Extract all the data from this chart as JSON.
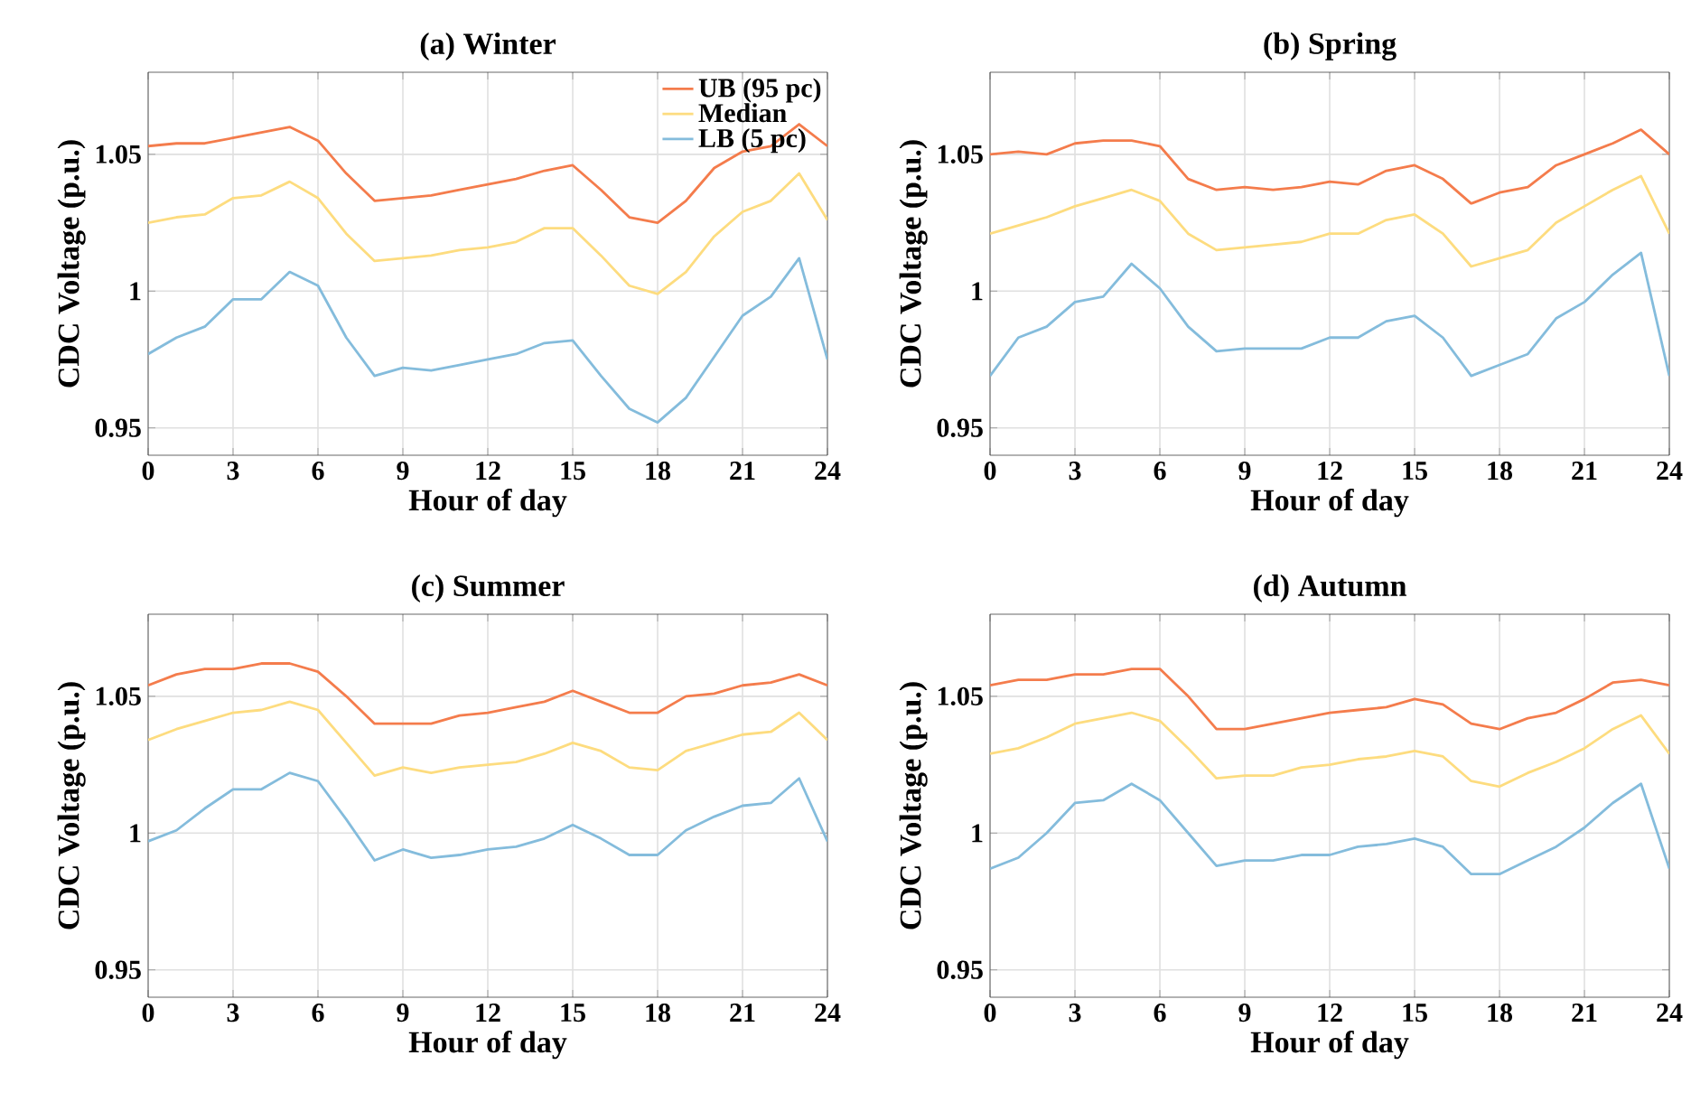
{
  "chart_data": [
    {
      "type": "line",
      "title": "(a) Winter",
      "xlabel": "Hour of day",
      "ylabel": "CDC Voltage (p.u.)",
      "x": [
        0,
        1,
        2,
        3,
        4,
        5,
        6,
        7,
        8,
        9,
        10,
        11,
        12,
        13,
        14,
        15,
        16,
        17,
        18,
        19,
        20,
        21,
        22,
        23,
        24
      ],
      "xlim": [
        0,
        24
      ],
      "xticks": [
        0,
        3,
        6,
        9,
        12,
        15,
        18,
        21,
        24
      ],
      "ylim": [
        0.94,
        1.08
      ],
      "yticks": [
        0.95,
        1,
        1.05
      ],
      "grid": true,
      "legend": "top right",
      "series": [
        {
          "name": "UB (95 pc)",
          "color": "#f47c4c",
          "values": [
            1.053,
            1.054,
            1.054,
            1.056,
            1.058,
            1.06,
            1.055,
            1.043,
            1.033,
            1.034,
            1.035,
            1.037,
            1.039,
            1.041,
            1.044,
            1.046,
            1.037,
            1.027,
            1.025,
            1.033,
            1.045,
            1.051,
            1.053,
            1.061,
            1.053
          ]
        },
        {
          "name": "Median",
          "color": "#fddc7f",
          "values": [
            1.025,
            1.027,
            1.028,
            1.034,
            1.035,
            1.04,
            1.034,
            1.021,
            1.011,
            1.012,
            1.013,
            1.015,
            1.016,
            1.018,
            1.023,
            1.023,
            1.013,
            1.002,
            0.999,
            1.007,
            1.02,
            1.029,
            1.033,
            1.043,
            1.026
          ]
        },
        {
          "name": "LB (5 pc)",
          "color": "#84bcdc",
          "values": [
            0.977,
            0.983,
            0.987,
            0.997,
            0.997,
            1.007,
            1.002,
            0.983,
            0.969,
            0.972,
            0.971,
            0.973,
            0.975,
            0.977,
            0.981,
            0.982,
            0.969,
            0.957,
            0.952,
            0.961,
            0.976,
            0.991,
            0.998,
            1.012,
            0.975
          ]
        }
      ]
    },
    {
      "type": "line",
      "title": "(b) Spring",
      "xlabel": "Hour of day",
      "ylabel": "CDC Voltage (p.u.)",
      "x": [
        0,
        1,
        2,
        3,
        4,
        5,
        6,
        7,
        8,
        9,
        10,
        11,
        12,
        13,
        14,
        15,
        16,
        17,
        18,
        19,
        20,
        21,
        22,
        23,
        24
      ],
      "xlim": [
        0,
        24
      ],
      "xticks": [
        0,
        3,
        6,
        9,
        12,
        15,
        18,
        21,
        24
      ],
      "ylim": [
        0.94,
        1.08
      ],
      "yticks": [
        0.95,
        1,
        1.05
      ],
      "grid": true,
      "series": [
        {
          "color": "#f47c4c",
          "values": [
            1.05,
            1.051,
            1.05,
            1.054,
            1.055,
            1.055,
            1.053,
            1.041,
            1.037,
            1.038,
            1.037,
            1.038,
            1.04,
            1.039,
            1.044,
            1.046,
            1.041,
            1.032,
            1.036,
            1.038,
            1.046,
            1.05,
            1.054,
            1.059,
            1.05
          ]
        },
        {
          "color": "#fddc7f",
          "values": [
            1.021,
            1.024,
            1.027,
            1.031,
            1.034,
            1.037,
            1.033,
            1.021,
            1.015,
            1.016,
            1.017,
            1.018,
            1.021,
            1.021,
            1.026,
            1.028,
            1.021,
            1.009,
            1.012,
            1.015,
            1.025,
            1.031,
            1.037,
            1.042,
            1.021
          ]
        },
        {
          "color": "#84bcdc",
          "values": [
            0.969,
            0.983,
            0.987,
            0.996,
            0.998,
            1.01,
            1.001,
            0.987,
            0.978,
            0.979,
            0.979,
            0.979,
            0.983,
            0.983,
            0.989,
            0.991,
            0.983,
            0.969,
            0.973,
            0.977,
            0.99,
            0.996,
            1.006,
            1.014,
            0.969
          ]
        }
      ]
    },
    {
      "type": "line",
      "title": "(c) Summer",
      "xlabel": "Hour of day",
      "ylabel": "CDC Voltage (p.u.)",
      "x": [
        0,
        1,
        2,
        3,
        4,
        5,
        6,
        7,
        8,
        9,
        10,
        11,
        12,
        13,
        14,
        15,
        16,
        17,
        18,
        19,
        20,
        21,
        22,
        23,
        24
      ],
      "xlim": [
        0,
        24
      ],
      "xticks": [
        0,
        3,
        6,
        9,
        12,
        15,
        18,
        21,
        24
      ],
      "ylim": [
        0.94,
        1.08
      ],
      "yticks": [
        0.95,
        1,
        1.05
      ],
      "grid": true,
      "series": [
        {
          "color": "#f47c4c",
          "values": [
            1.054,
            1.058,
            1.06,
            1.06,
            1.062,
            1.062,
            1.059,
            1.05,
            1.04,
            1.04,
            1.04,
            1.043,
            1.044,
            1.046,
            1.048,
            1.052,
            1.048,
            1.044,
            1.044,
            1.05,
            1.051,
            1.054,
            1.055,
            1.058,
            1.054
          ]
        },
        {
          "color": "#fddc7f",
          "values": [
            1.034,
            1.038,
            1.041,
            1.044,
            1.045,
            1.048,
            1.045,
            1.033,
            1.021,
            1.024,
            1.022,
            1.024,
            1.025,
            1.026,
            1.029,
            1.033,
            1.03,
            1.024,
            1.023,
            1.03,
            1.033,
            1.036,
            1.037,
            1.044,
            1.034
          ]
        },
        {
          "color": "#84bcdc",
          "values": [
            0.997,
            1.001,
            1.009,
            1.016,
            1.016,
            1.022,
            1.019,
            1.005,
            0.99,
            0.994,
            0.991,
            0.992,
            0.994,
            0.995,
            0.998,
            1.003,
            0.998,
            0.992,
            0.992,
            1.001,
            1.006,
            1.01,
            1.011,
            1.02,
            0.997
          ]
        }
      ]
    },
    {
      "type": "line",
      "title": "(d) Autumn",
      "xlabel": "Hour of day",
      "ylabel": "CDC Voltage (p.u.)",
      "x": [
        0,
        1,
        2,
        3,
        4,
        5,
        6,
        7,
        8,
        9,
        10,
        11,
        12,
        13,
        14,
        15,
        16,
        17,
        18,
        19,
        20,
        21,
        22,
        23,
        24
      ],
      "xlim": [
        0,
        24
      ],
      "xticks": [
        0,
        3,
        6,
        9,
        12,
        15,
        18,
        21,
        24
      ],
      "ylim": [
        0.94,
        1.08
      ],
      "yticks": [
        0.95,
        1,
        1.05
      ],
      "grid": true,
      "series": [
        {
          "color": "#f47c4c",
          "values": [
            1.054,
            1.056,
            1.056,
            1.058,
            1.058,
            1.06,
            1.06,
            1.05,
            1.038,
            1.038,
            1.04,
            1.042,
            1.044,
            1.045,
            1.046,
            1.049,
            1.047,
            1.04,
            1.038,
            1.042,
            1.044,
            1.049,
            1.055,
            1.056,
            1.054
          ]
        },
        {
          "color": "#fddc7f",
          "values": [
            1.029,
            1.031,
            1.035,
            1.04,
            1.042,
            1.044,
            1.041,
            1.031,
            1.02,
            1.021,
            1.021,
            1.024,
            1.025,
            1.027,
            1.028,
            1.03,
            1.028,
            1.019,
            1.017,
            1.022,
            1.026,
            1.031,
            1.038,
            1.043,
            1.029
          ]
        },
        {
          "color": "#84bcdc",
          "values": [
            0.987,
            0.991,
            1.0,
            1.011,
            1.012,
            1.018,
            1.012,
            1.0,
            0.988,
            0.99,
            0.99,
            0.992,
            0.992,
            0.995,
            0.996,
            0.998,
            0.995,
            0.985,
            0.985,
            0.99,
            0.995,
            1.002,
            1.011,
            1.018,
            0.987
          ]
        }
      ]
    }
  ]
}
